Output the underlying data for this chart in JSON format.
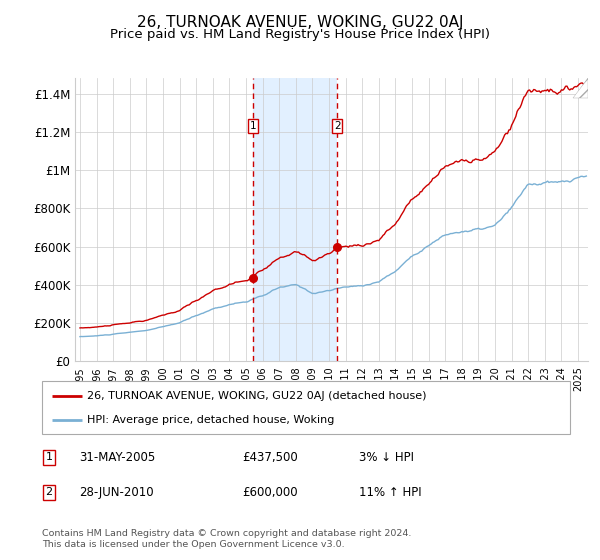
{
  "title": "26, TURNOAK AVENUE, WOKING, GU22 0AJ",
  "subtitle": "Price paid vs. HM Land Registry's House Price Index (HPI)",
  "title_fontsize": 11,
  "subtitle_fontsize": 9.5,
  "ylabel_ticks": [
    "£0",
    "£200K",
    "£400K",
    "£600K",
    "£800K",
    "£1M",
    "£1.2M",
    "£1.4M"
  ],
  "ytick_values": [
    0,
    200000,
    400000,
    600000,
    800000,
    1000000,
    1200000,
    1400000
  ],
  "ylim": [
    0,
    1480000
  ],
  "xlim_start": 1994.7,
  "xlim_end": 2025.6,
  "sale1_x": 2005.42,
  "sale1_y": 437500,
  "sale2_x": 2010.5,
  "sale2_y": 600000,
  "sale1_label": "31-MAY-2005",
  "sale1_price": "£437,500",
  "sale1_hpi": "3% ↓ HPI",
  "sale2_label": "28-JUN-2010",
  "sale2_price": "£600,000",
  "sale2_hpi": "11% ↑ HPI",
  "line1_color": "#cc0000",
  "line2_color": "#7ab0d4",
  "shade_color": "#ddeeff",
  "vline_color": "#cc0000",
  "marker_color": "#cc0000",
  "legend1_label": "26, TURNOAK AVENUE, WOKING, GU22 0AJ (detached house)",
  "legend2_label": "HPI: Average price, detached house, Woking",
  "footnote": "Contains HM Land Registry data © Crown copyright and database right 2024.\nThis data is licensed under the Open Government Licence v3.0.",
  "background_color": "#ffffff",
  "grid_color": "#cccccc"
}
